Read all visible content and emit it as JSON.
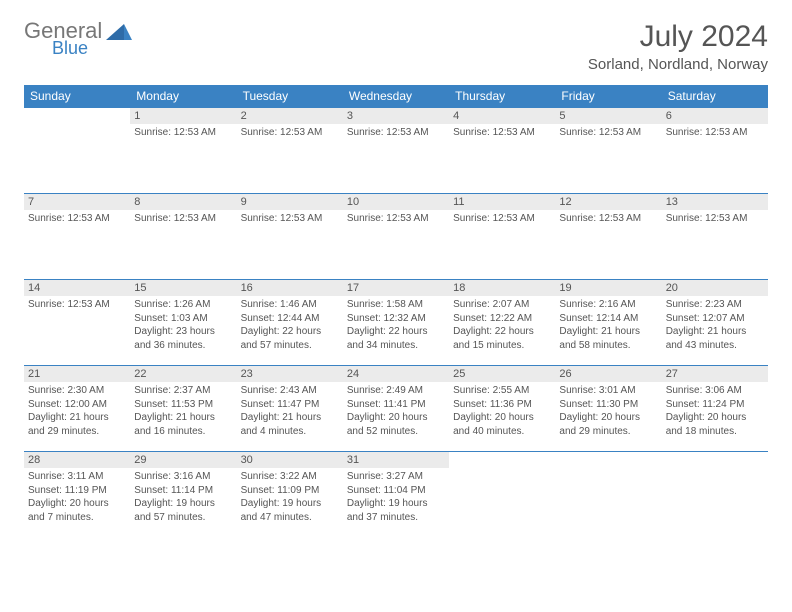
{
  "header": {
    "logo_general": "General",
    "logo_blue": "Blue",
    "month_title": "July 2024",
    "location": "Sorland, Nordland, Norway"
  },
  "calendar": {
    "day_names": [
      "Sunday",
      "Monday",
      "Tuesday",
      "Wednesday",
      "Thursday",
      "Friday",
      "Saturday"
    ],
    "header_bg": "#3a82c3",
    "header_fg": "#ffffff",
    "daynum_bg": "#ebebeb",
    "border_color": "#3a82c3",
    "weeks": [
      [
        {
          "num": "",
          "lines": []
        },
        {
          "num": "1",
          "lines": [
            "Sunrise: 12:53 AM"
          ]
        },
        {
          "num": "2",
          "lines": [
            "Sunrise: 12:53 AM"
          ]
        },
        {
          "num": "3",
          "lines": [
            "Sunrise: 12:53 AM"
          ]
        },
        {
          "num": "4",
          "lines": [
            "Sunrise: 12:53 AM"
          ]
        },
        {
          "num": "5",
          "lines": [
            "Sunrise: 12:53 AM"
          ]
        },
        {
          "num": "6",
          "lines": [
            "Sunrise: 12:53 AM"
          ]
        }
      ],
      [
        {
          "num": "7",
          "lines": [
            "Sunrise: 12:53 AM"
          ]
        },
        {
          "num": "8",
          "lines": [
            "Sunrise: 12:53 AM"
          ]
        },
        {
          "num": "9",
          "lines": [
            "Sunrise: 12:53 AM"
          ]
        },
        {
          "num": "10",
          "lines": [
            "Sunrise: 12:53 AM"
          ]
        },
        {
          "num": "11",
          "lines": [
            "Sunrise: 12:53 AM"
          ]
        },
        {
          "num": "12",
          "lines": [
            "Sunrise: 12:53 AM"
          ]
        },
        {
          "num": "13",
          "lines": [
            "Sunrise: 12:53 AM"
          ]
        }
      ],
      [
        {
          "num": "14",
          "lines": [
            "Sunrise: 12:53 AM"
          ]
        },
        {
          "num": "15",
          "lines": [
            "Sunrise: 1:26 AM",
            "Sunset: 1:03 AM",
            "Daylight: 23 hours and 36 minutes."
          ]
        },
        {
          "num": "16",
          "lines": [
            "Sunrise: 1:46 AM",
            "Sunset: 12:44 AM",
            "Daylight: 22 hours and 57 minutes."
          ]
        },
        {
          "num": "17",
          "lines": [
            "Sunrise: 1:58 AM",
            "Sunset: 12:32 AM",
            "Daylight: 22 hours and 34 minutes."
          ]
        },
        {
          "num": "18",
          "lines": [
            "Sunrise: 2:07 AM",
            "Sunset: 12:22 AM",
            "Daylight: 22 hours and 15 minutes."
          ]
        },
        {
          "num": "19",
          "lines": [
            "Sunrise: 2:16 AM",
            "Sunset: 12:14 AM",
            "Daylight: 21 hours and 58 minutes."
          ]
        },
        {
          "num": "20",
          "lines": [
            "Sunrise: 2:23 AM",
            "Sunset: 12:07 AM",
            "Daylight: 21 hours and 43 minutes."
          ]
        }
      ],
      [
        {
          "num": "21",
          "lines": [
            "Sunrise: 2:30 AM",
            "Sunset: 12:00 AM",
            "Daylight: 21 hours and 29 minutes."
          ]
        },
        {
          "num": "22",
          "lines": [
            "Sunrise: 2:37 AM",
            "Sunset: 11:53 PM",
            "Daylight: 21 hours and 16 minutes."
          ]
        },
        {
          "num": "23",
          "lines": [
            "Sunrise: 2:43 AM",
            "Sunset: 11:47 PM",
            "Daylight: 21 hours and 4 minutes."
          ]
        },
        {
          "num": "24",
          "lines": [
            "Sunrise: 2:49 AM",
            "Sunset: 11:41 PM",
            "Daylight: 20 hours and 52 minutes."
          ]
        },
        {
          "num": "25",
          "lines": [
            "Sunrise: 2:55 AM",
            "Sunset: 11:36 PM",
            "Daylight: 20 hours and 40 minutes."
          ]
        },
        {
          "num": "26",
          "lines": [
            "Sunrise: 3:01 AM",
            "Sunset: 11:30 PM",
            "Daylight: 20 hours and 29 minutes."
          ]
        },
        {
          "num": "27",
          "lines": [
            "Sunrise: 3:06 AM",
            "Sunset: 11:24 PM",
            "Daylight: 20 hours and 18 minutes."
          ]
        }
      ],
      [
        {
          "num": "28",
          "lines": [
            "Sunrise: 3:11 AM",
            "Sunset: 11:19 PM",
            "Daylight: 20 hours and 7 minutes."
          ]
        },
        {
          "num": "29",
          "lines": [
            "Sunrise: 3:16 AM",
            "Sunset: 11:14 PM",
            "Daylight: 19 hours and 57 minutes."
          ]
        },
        {
          "num": "30",
          "lines": [
            "Sunrise: 3:22 AM",
            "Sunset: 11:09 PM",
            "Daylight: 19 hours and 47 minutes."
          ]
        },
        {
          "num": "31",
          "lines": [
            "Sunrise: 3:27 AM",
            "Sunset: 11:04 PM",
            "Daylight: 19 hours and 37 minutes."
          ]
        },
        {
          "num": "",
          "lines": []
        },
        {
          "num": "",
          "lines": []
        },
        {
          "num": "",
          "lines": []
        }
      ]
    ]
  }
}
